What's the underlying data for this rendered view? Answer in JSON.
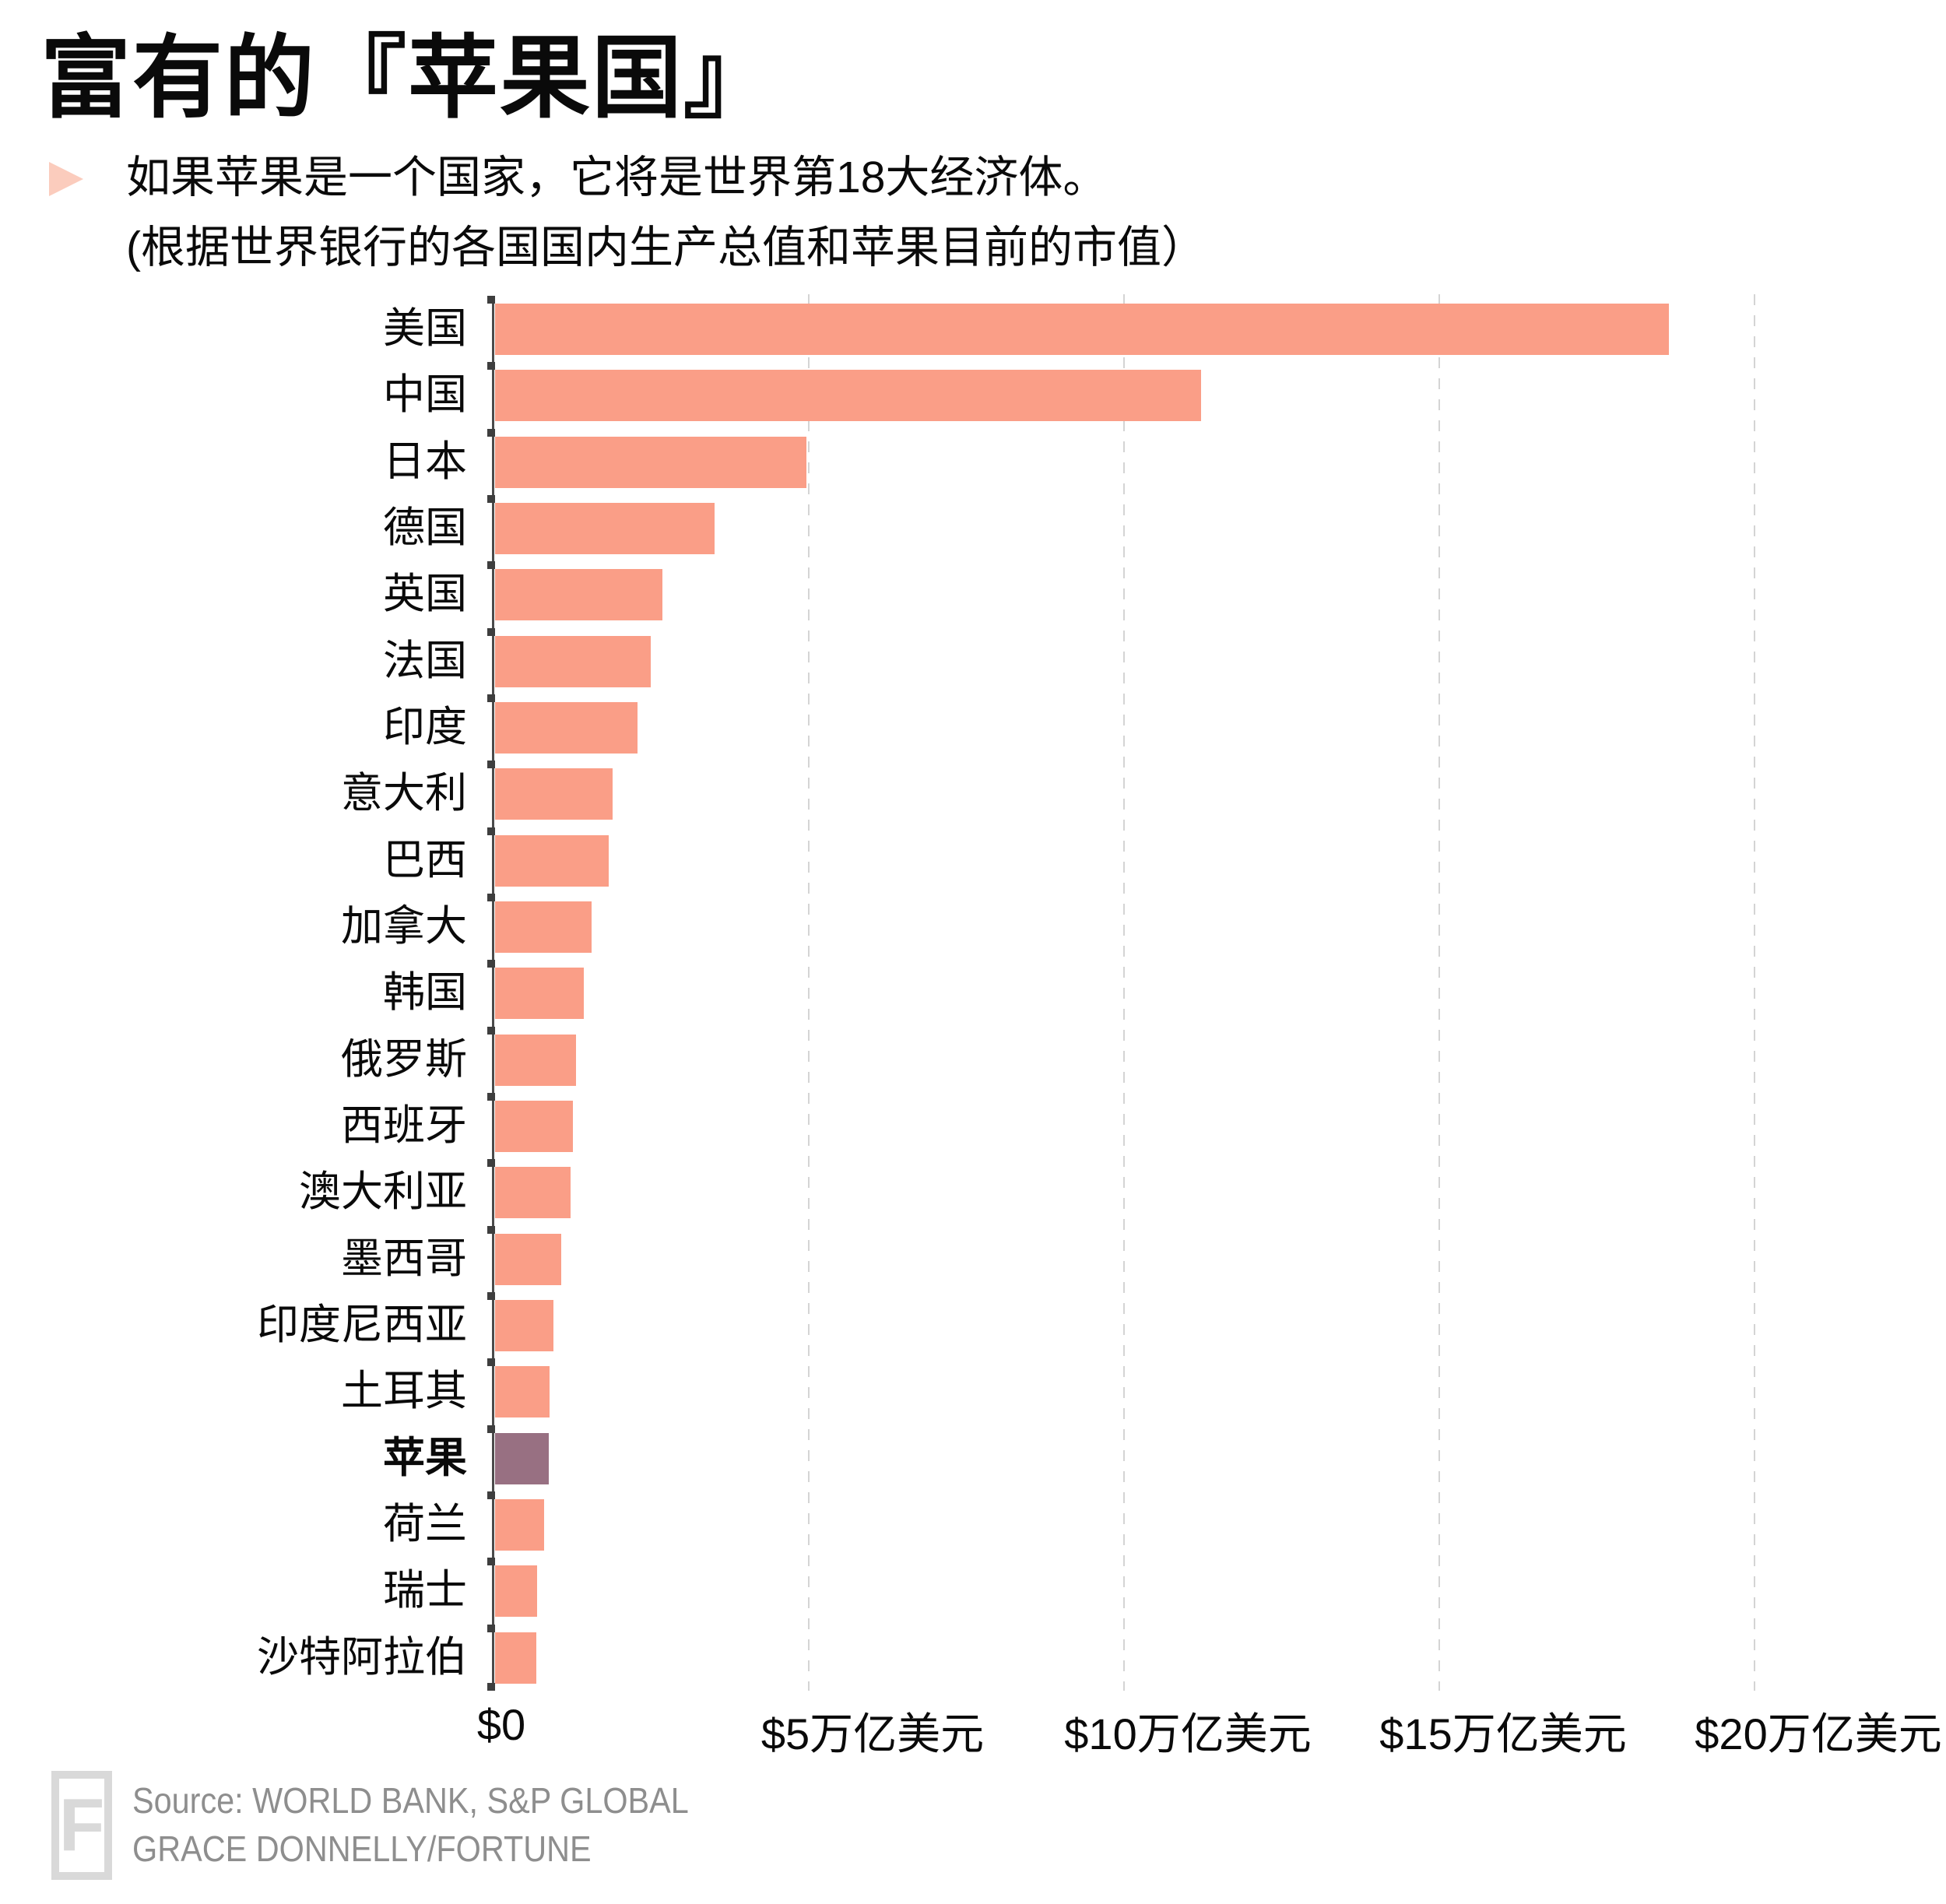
{
  "header": {
    "title": "富有的『苹果国』",
    "subtitle_line1": "如果苹果是一个国家，它将是世界第18大经济体。",
    "subtitle_line2": "(根据世界银行的各国国内生产总值和苹果目前的市值）"
  },
  "chart_data": {
    "type": "bar",
    "orientation": "horizontal",
    "title": "富有的『苹果国』",
    "categories": [
      "美国",
      "中国",
      "日本",
      "德国",
      "英国",
      "法国",
      "印度",
      "意大利",
      "巴西",
      "加拿大",
      "韩国",
      "俄罗斯",
      "西班牙",
      "澳大利亚",
      "墨西哥",
      "印度尼西亚",
      "土耳其",
      "苹果",
      "荷兰",
      "瑞士",
      "沙特阿拉伯"
    ],
    "values": [
      18.62,
      11.2,
      4.94,
      3.48,
      2.65,
      2.47,
      2.26,
      1.86,
      1.8,
      1.53,
      1.41,
      1.28,
      1.24,
      1.2,
      1.05,
      0.93,
      0.86,
      0.85,
      0.78,
      0.67,
      0.65
    ],
    "unit": "万亿美元 (trillion USD)",
    "highlight_category": "苹果",
    "x_ticks": [
      "$0",
      "$5万亿美元",
      "$10万亿美元",
      "$15万亿美元",
      "$20万亿美元"
    ],
    "x_tick_values": [
      0,
      5,
      10,
      15,
      20
    ],
    "xlim": [
      0,
      20
    ],
    "grid": "vertical-dashed",
    "legend": "none"
  },
  "colors": {
    "bar": "#fa9e87",
    "highlight_bar": "#987082",
    "bullet": "#fbccbd",
    "axis": "#4b4b4b",
    "gridline": "#d4d4d4",
    "footer_text": "#8e8e8e",
    "logo_gray": "#d9d9d9"
  },
  "footer": {
    "logo_letter": "F",
    "source": "Source: WORLD BANK, S&P GLOBAL",
    "credit": "GRACE DONNELLY/FORTUNE"
  }
}
